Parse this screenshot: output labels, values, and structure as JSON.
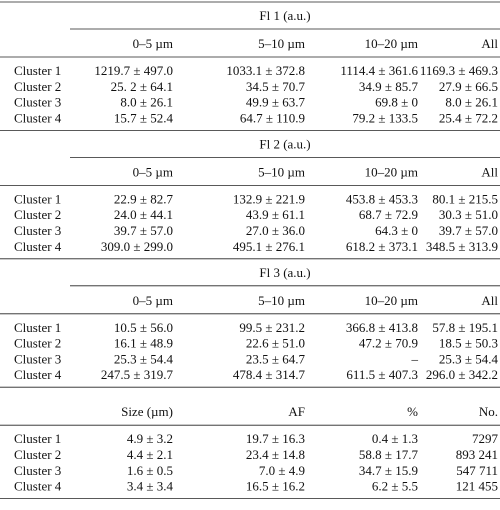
{
  "table": {
    "sections": [
      {
        "title": "Fl 1 (a.u.)",
        "headers": [
          "0–5 µm",
          "5–10 µm",
          "10–20 µm",
          "All"
        ],
        "rows": [
          {
            "label": "Cluster 1",
            "cells": [
              "1219.7 ± 497.0",
              "1033.1 ± 372.8",
              "1114.4 ± 361.6",
              "1169.3 ± 469.3"
            ]
          },
          {
            "label": "Cluster 2",
            "cells": [
              "25. 2 ± 64.1",
              "34.5 ± 70.7",
              "34.9 ± 85.7",
              "27.9 ± 66.5"
            ]
          },
          {
            "label": "Cluster 3",
            "cells": [
              "8.0 ± 26.1",
              "49.9 ± 63.7",
              "69.8 ± 0",
              "8.0 ± 26.1"
            ]
          },
          {
            "label": "Cluster 4",
            "cells": [
              "15.7 ± 52.4",
              "64.7 ± 110.9",
              "79.2 ± 133.5",
              "25.4 ± 72.2"
            ]
          }
        ]
      },
      {
        "title": "Fl 2 (a.u.)",
        "headers": [
          "0–5 µm",
          "5–10 µm",
          "10–20 µm",
          "All"
        ],
        "rows": [
          {
            "label": "Cluster 1",
            "cells": [
              "22.9 ± 82.7",
              "132.9 ± 221.9",
              "453.8 ± 453.3",
              "80.1 ± 215.5"
            ]
          },
          {
            "label": "Cluster 2",
            "cells": [
              "24.0 ± 44.1",
              "43.9 ± 61.1",
              "68.7 ± 72.9",
              "30.3 ± 51.0"
            ]
          },
          {
            "label": "Cluster 3",
            "cells": [
              "39.7 ± 57.0",
              "27.0 ± 36.0",
              "64.3 ± 0",
              "39.7 ± 57.0"
            ]
          },
          {
            "label": "Cluster 4",
            "cells": [
              "309.0 ± 299.0",
              "495.1 ± 276.1",
              "618.2 ± 373.1",
              "348.5 ± 313.9"
            ]
          }
        ]
      },
      {
        "title": "Fl 3 (a.u.)",
        "headers": [
          "0–5 µm",
          "5–10 µm",
          "10–20 µm",
          "All"
        ],
        "rows": [
          {
            "label": "Cluster 1",
            "cells": [
              "10.5 ± 56.0",
              "99.5 ± 231.2",
              "366.8 ± 413.8",
              "57.8 ± 195.1"
            ]
          },
          {
            "label": "Cluster 2",
            "cells": [
              "16.1 ± 48.9",
              "22.6 ± 51.0",
              "47.2 ± 70.9",
              "18.5 ± 50.3"
            ]
          },
          {
            "label": "Cluster 3",
            "cells": [
              "25.3 ± 54.4",
              "23.5 ± 64.7",
              "–",
              "25.3 ± 54.4"
            ]
          },
          {
            "label": "Cluster 4",
            "cells": [
              "247.5 ± 319.7",
              "478.4 ± 314.7",
              "611.5 ± 407.3",
              "296.0 ± 342.2"
            ]
          }
        ]
      },
      {
        "headers": [
          "Size (µm)",
          "AF",
          "%",
          "No."
        ],
        "rows": [
          {
            "label": "Cluster 1",
            "cells": [
              "4.9 ± 3.2",
              "19.7 ± 16.3",
              "0.4 ± 1.3",
              "7297"
            ]
          },
          {
            "label": "Cluster 2",
            "cells": [
              "4.4 ± 2.1",
              "23.4 ± 14.8",
              "58.8 ± 17.7",
              "893 241"
            ]
          },
          {
            "label": "Cluster 3",
            "cells": [
              "1.6 ± 0.5",
              "7.0 ± 4.9",
              "34.7 ± 15.9",
              "547 711"
            ]
          },
          {
            "label": "Cluster 4",
            "cells": [
              "3.4 ± 3.4",
              "16.5 ± 16.2",
              "6.2 ± 5.5",
              "121 455"
            ]
          }
        ]
      }
    ]
  }
}
